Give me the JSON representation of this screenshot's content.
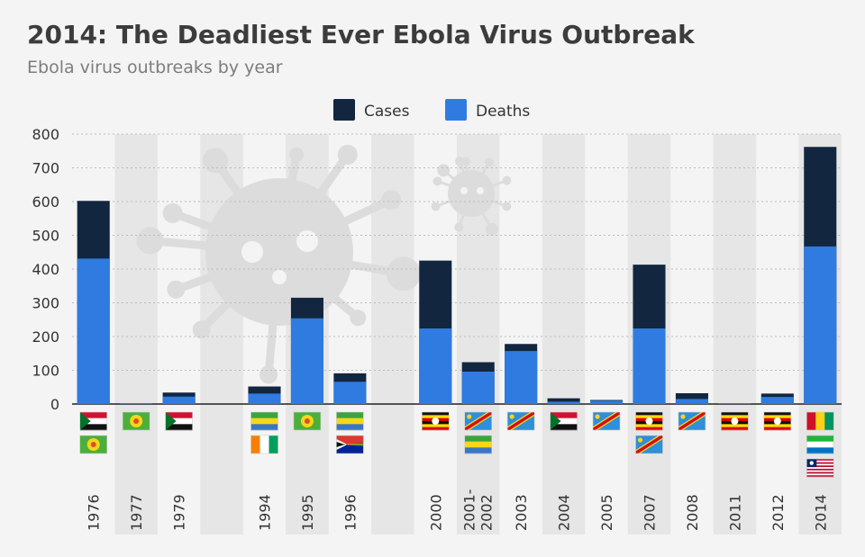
{
  "chart_data": {
    "type": "bar",
    "title": "2014: The Deadliest Ever Ebola Virus Outbreak",
    "subtitle": "Ebola virus outbreaks by year",
    "categories": [
      "1976",
      "1977",
      "1979",
      "",
      "1994",
      "1995",
      "1996",
      "",
      "2000",
      "2001-\n2002",
      "2003",
      "2004",
      "2005",
      "2007",
      "2008",
      "2011",
      "2012",
      "2014"
    ],
    "series": [
      {
        "name": "Cases",
        "color": "#12263f",
        "values": [
          602,
          1,
          34,
          null,
          52,
          315,
          91,
          null,
          425,
          124,
          178,
          17,
          12,
          413,
          32,
          1,
          31,
          762
        ]
      },
      {
        "name": "Deaths",
        "color": "#2f7be0",
        "values": [
          431,
          1,
          22,
          null,
          31,
          254,
          66,
          null,
          224,
          96,
          157,
          7,
          10,
          224,
          15,
          1,
          21,
          467
        ]
      }
    ],
    "ylim": [
      0,
      800
    ],
    "yticks": [
      0,
      100,
      200,
      300,
      400,
      500,
      600,
      700,
      800
    ],
    "legend_position": "top-center",
    "shaded_columns": [
      1,
      3,
      5,
      7,
      9,
      11,
      13,
      15,
      17
    ],
    "flags": [
      [
        "sudan",
        "zaire"
      ],
      [
        "zaire"
      ],
      [
        "sudan"
      ],
      [],
      [
        "gabon",
        "cote-divoire"
      ],
      [
        "zaire"
      ],
      [
        "gabon",
        "south-africa"
      ],
      [],
      [
        "uganda"
      ],
      [
        "drc",
        "gabon"
      ],
      [
        "drc"
      ],
      [
        "sudan"
      ],
      [
        "drc"
      ],
      [
        "uganda",
        "drc"
      ],
      [
        "drc"
      ],
      [
        "uganda"
      ],
      [
        "uganda"
      ],
      [
        "guinea",
        "sierra-leone",
        "liberia"
      ]
    ]
  }
}
